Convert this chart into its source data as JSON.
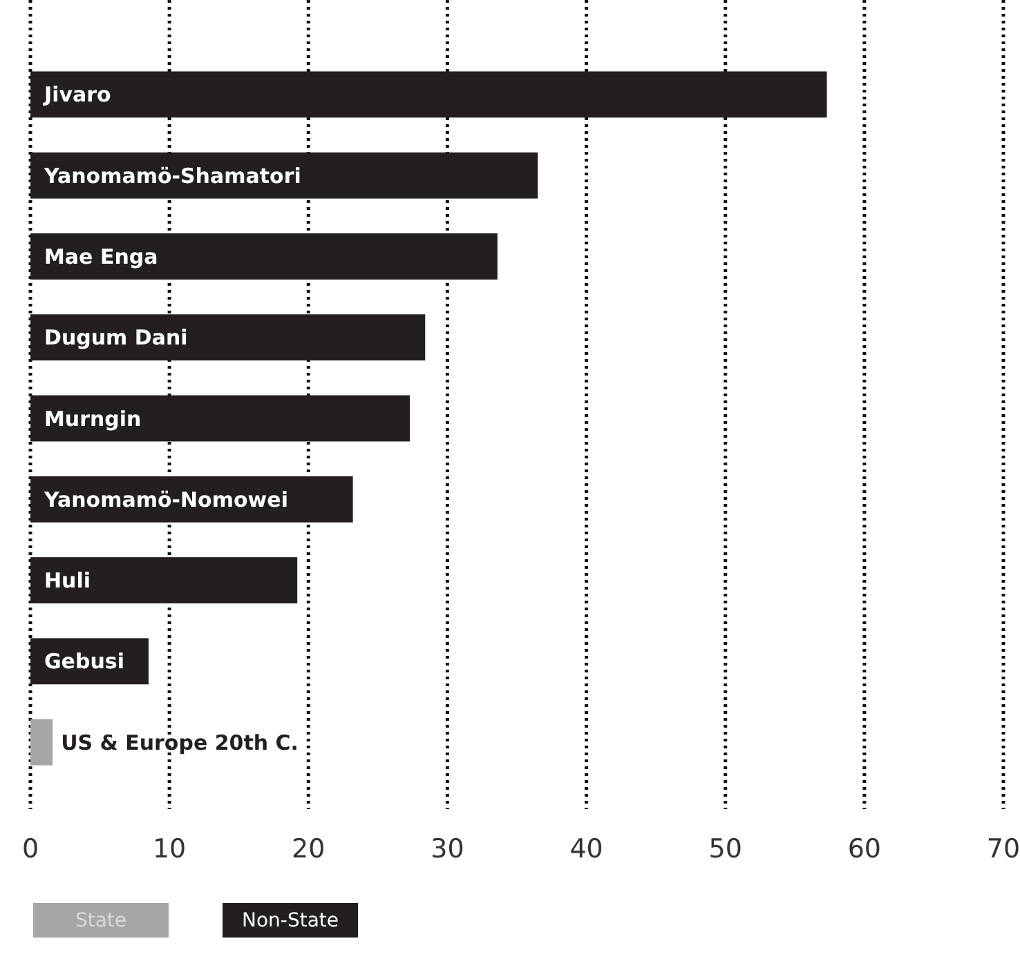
{
  "chart_data": {
    "type": "bar",
    "orientation": "horizontal",
    "categories": [
      "Jivaro",
      "Yanomamö-Shamatori",
      "Mae Enga",
      "Dugum Dani",
      "Murngin",
      "Yanomamö-Nomowei",
      "Huli",
      "Gebusi",
      "US & Europe 20th C."
    ],
    "series": [
      {
        "name": "State",
        "color": "#a6a6a6",
        "values": [
          null,
          null,
          null,
          null,
          null,
          null,
          null,
          null,
          1.6
        ]
      },
      {
        "name": "Non-State",
        "color": "#231f20",
        "values": [
          57.3,
          36.5,
          33.6,
          28.4,
          27.3,
          23.2,
          19.2,
          8.5,
          null
        ]
      }
    ],
    "xlim": [
      0,
      70
    ],
    "xticks": [
      0,
      10,
      20,
      30,
      40,
      50,
      60,
      70
    ],
    "grid": "x",
    "legend": "bottom left"
  }
}
